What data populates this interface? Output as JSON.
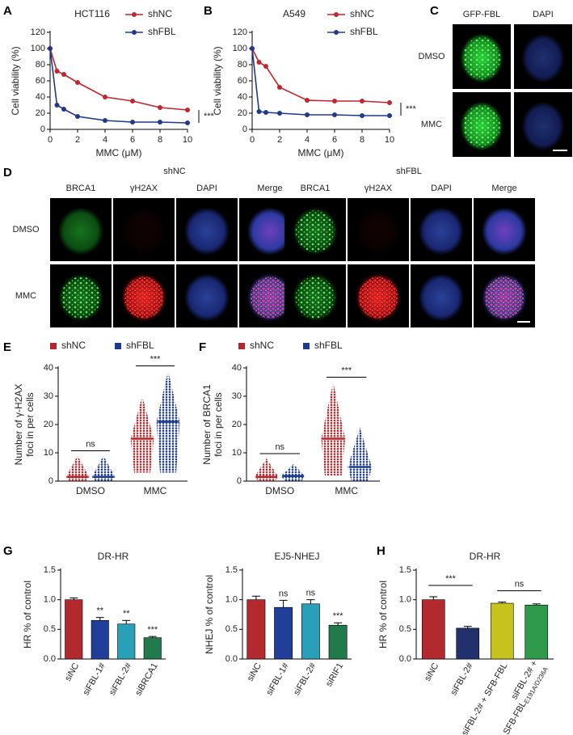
{
  "figure": {
    "panel_labels": [
      "A",
      "B",
      "C",
      "D",
      "E",
      "F",
      "G",
      "H"
    ],
    "C": {
      "columns": [
        "GFP-FBL",
        "DAPI"
      ],
      "rows": [
        "DMSO",
        "MMC"
      ]
    },
    "D": {
      "groups": [
        {
          "name": "shNC",
          "columns": [
            "BRCA1",
            "γH2AX",
            "DAPI",
            "Merge"
          ]
        },
        {
          "name": "shFBL",
          "columns": [
            "BRCA1",
            "γH2AX",
            "DAPI",
            "Merge"
          ]
        }
      ],
      "rows": [
        "DMSO",
        "MMC"
      ]
    }
  },
  "chart_data": [
    {
      "type": "line",
      "title": "HCT116",
      "xlabel": "MMC (μM)",
      "ylabel": "Cell viability (%)",
      "x": [
        0,
        0.5,
        1,
        2,
        4,
        6,
        8,
        10
      ],
      "xlim": [
        0,
        10
      ],
      "xticks": [
        0,
        2,
        4,
        6,
        8,
        10
      ],
      "ylim": [
        0,
        120
      ],
      "yticks": [
        0,
        20,
        40,
        60,
        80,
        100,
        120
      ],
      "series": [
        {
          "name": "shNC",
          "color": "#c0272d",
          "values": [
            100,
            72,
            68,
            58,
            40,
            35,
            27,
            24
          ]
        },
        {
          "name": "shFBL",
          "color": "#1f3a8a",
          "values": [
            100,
            30,
            25,
            16,
            11,
            9,
            9,
            8
          ]
        }
      ],
      "annotation": "***"
    },
    {
      "type": "line",
      "title": "A549",
      "xlabel": "MMC (μM)",
      "ylabel": "Cell viability (%)",
      "x": [
        0,
        0.5,
        1,
        2,
        4,
        6,
        8,
        10
      ],
      "xlim": [
        0,
        10
      ],
      "xticks": [
        0,
        2,
        4,
        6,
        8,
        10
      ],
      "ylim": [
        0,
        120
      ],
      "yticks": [
        0,
        20,
        40,
        60,
        80,
        100,
        120
      ],
      "series": [
        {
          "name": "shNC",
          "color": "#c0272d",
          "values": [
            100,
            83,
            78,
            52,
            36,
            35,
            35,
            33
          ]
        },
        {
          "name": "shFBL",
          "color": "#1f3a8a",
          "values": [
            100,
            22,
            21,
            20,
            18,
            18,
            17,
            17
          ]
        }
      ],
      "annotation": "***"
    },
    {
      "type": "dot",
      "ylabel": [
        "Number of γ-H2AX",
        "foci in per cells"
      ],
      "categories": [
        "DMSO",
        "MMC"
      ],
      "ylim": [
        0,
        40
      ],
      "yticks": [
        0,
        10,
        20,
        30,
        40
      ],
      "series": [
        {
          "name": "shNC",
          "color": "#b5262b",
          "values": [
            1.5,
            15
          ],
          "ranges": [
            [
              0,
              9
            ],
            [
              3,
              30
            ]
          ]
        },
        {
          "name": "shFBL",
          "color": "#1e3c8c",
          "values": [
            1.5,
            21
          ],
          "ranges": [
            [
              0,
              9
            ],
            [
              3,
              39
            ]
          ]
        }
      ],
      "comparisons": [
        {
          "label": "ns",
          "group": 0
        },
        {
          "label": "***",
          "group": 1
        }
      ]
    },
    {
      "type": "dot",
      "ylabel": [
        "Number of BRCA1",
        "foci in per cells"
      ],
      "categories": [
        "DMSO",
        "MMC"
      ],
      "ylim": [
        0,
        40
      ],
      "yticks": [
        0,
        10,
        20,
        30,
        40
      ],
      "series": [
        {
          "name": "shNC",
          "color": "#b5262b",
          "values": [
            1.5,
            15
          ],
          "ranges": [
            [
              0,
              8
            ],
            [
              2,
              35
            ]
          ]
        },
        {
          "name": "shFBL",
          "color": "#1e3c8c",
          "values": [
            1.8,
            5
          ],
          "ranges": [
            [
              0,
              6
            ],
            [
              0,
              19
            ]
          ]
        }
      ],
      "comparisons": [
        {
          "label": "ns",
          "group": 0
        },
        {
          "label": "***",
          "group": 1
        }
      ]
    },
    {
      "type": "bar",
      "title": "DR-HR",
      "ylabel": "HR % of control",
      "categories": [
        "siNC",
        "siFBL-1#",
        "siFBL-2#",
        "siBRCA1"
      ],
      "values": [
        1.0,
        0.65,
        0.59,
        0.36
      ],
      "errors": [
        0.03,
        0.05,
        0.06,
        0.02
      ],
      "colors": [
        "#b22a2e",
        "#1f3f9a",
        "#2aa0b8",
        "#207a4a"
      ],
      "annotations": [
        null,
        "**",
        "**",
        "***"
      ],
      "ylim": [
        0,
        1.5
      ],
      "yticks": [
        {
          "value": 0,
          "label": "0.0"
        },
        0.5,
        {
          "value": 1,
          "label": "1.0"
        },
        1.5
      ]
    },
    {
      "type": "bar",
      "title": "EJ5-NHEJ",
      "ylabel": "NHEJ % of control",
      "categories": [
        "siNC",
        "siFBL-1#",
        "siFBL-2#",
        "siRIF1"
      ],
      "values": [
        1.0,
        0.87,
        0.93,
        0.57
      ],
      "errors": [
        0.06,
        0.12,
        0.07,
        0.04
      ],
      "colors": [
        "#b22a2e",
        "#1f3f9a",
        "#2aa0b8",
        "#207a4a"
      ],
      "annotations": [
        null,
        "ns",
        "ns",
        "***"
      ],
      "ylim": [
        0,
        1.5
      ],
      "yticks": [
        {
          "value": 0,
          "label": "0.0"
        },
        0.5,
        {
          "value": 1,
          "label": "1.0"
        },
        1.5
      ]
    },
    {
      "type": "bar",
      "title": "DR-HR",
      "ylabel": "HR % of control",
      "categories": [
        "siNC",
        "siFBL-2#",
        "siFBL-2# + SFB-FBL",
        "siFBL-2# +"
      ],
      "category_line2": "SFB-FBL",
      "subscript": "E191A/D236A",
      "values": [
        1.0,
        0.52,
        0.94,
        0.91
      ],
      "errors": [
        0.05,
        0.03,
        0.02,
        0.02
      ],
      "colors": [
        "#b22a2e",
        "#23306e",
        "#c6c21e",
        "#2e9a4a"
      ],
      "ylim": [
        0,
        1.5
      ],
      "yticks": [
        {
          "value": 0,
          "label": "0.0"
        },
        0.5,
        {
          "value": 1,
          "label": "1.0"
        },
        1.5
      ],
      "comparisons": [
        {
          "label": "***",
          "pairs": [
            0,
            1
          ]
        },
        {
          "label": "ns",
          "pairs": [
            2,
            3
          ]
        }
      ]
    }
  ]
}
